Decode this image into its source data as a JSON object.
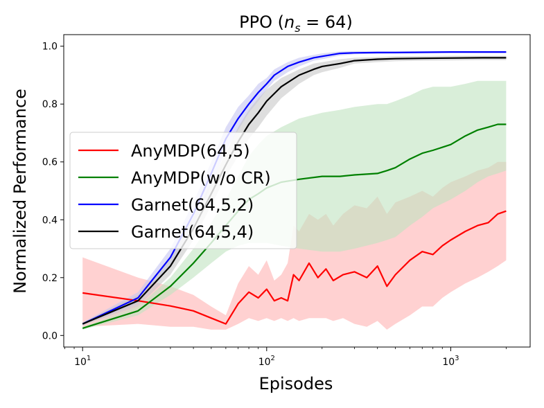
{
  "chart_data": {
    "type": "line",
    "title": "PPO (n_s = 64)",
    "title_prefix": "PPO (",
    "title_var": "n",
    "title_sub": "s",
    "title_suffix": " = 64)",
    "xlabel": "Episodes",
    "ylabel": "Normalized Performance",
    "xscale": "log",
    "xlim": [
      7.9,
      2700
    ],
    "ylim": [
      -0.04,
      1.04
    ],
    "yticks": [
      0.0,
      0.2,
      0.4,
      0.6,
      0.8,
      1.0
    ],
    "ytick_labels": [
      "0.0",
      "0.2",
      "0.4",
      "0.6",
      "0.8",
      "1.0"
    ],
    "xticks": [
      10,
      100,
      1000
    ],
    "xtick_labels": [
      {
        "base": "10",
        "exp": "1"
      },
      {
        "base": "10",
        "exp": "2"
      },
      {
        "base": "10",
        "exp": "3"
      }
    ],
    "legend_position": "center-left",
    "series": [
      {
        "name": "AnyMDP(64,5)",
        "color": "#ff0000",
        "band_color": "#ffb3b3",
        "x": [
          10,
          20,
          30,
          40,
          50,
          60,
          70,
          80,
          90,
          100,
          110,
          120,
          130,
          140,
          150,
          170,
          190,
          210,
          230,
          260,
          300,
          350,
          400,
          450,
          500,
          600,
          700,
          800,
          900,
          1000,
          1200,
          1400,
          1600,
          1800,
          2000
        ],
        "values": [
          0.147,
          0.12,
          0.102,
          0.085,
          0.06,
          0.04,
          0.11,
          0.15,
          0.13,
          0.16,
          0.12,
          0.13,
          0.12,
          0.21,
          0.19,
          0.25,
          0.2,
          0.23,
          0.19,
          0.21,
          0.22,
          0.2,
          0.24,
          0.17,
          0.21,
          0.26,
          0.29,
          0.28,
          0.31,
          0.33,
          0.36,
          0.38,
          0.39,
          0.42,
          0.43
        ],
        "lower": [
          0.03,
          0.04,
          0.03,
          0.03,
          0.02,
          0.02,
          0.04,
          0.06,
          0.05,
          0.06,
          0.05,
          0.06,
          0.05,
          0.06,
          0.05,
          0.06,
          0.06,
          0.06,
          0.05,
          0.06,
          0.04,
          0.03,
          0.05,
          0.02,
          0.04,
          0.07,
          0.1,
          0.1,
          0.13,
          0.15,
          0.18,
          0.2,
          0.22,
          0.24,
          0.26
        ],
        "upper": [
          0.27,
          0.2,
          0.17,
          0.14,
          0.1,
          0.07,
          0.18,
          0.24,
          0.21,
          0.26,
          0.19,
          0.21,
          0.25,
          0.38,
          0.36,
          0.42,
          0.4,
          0.42,
          0.38,
          0.42,
          0.45,
          0.44,
          0.48,
          0.42,
          0.46,
          0.48,
          0.5,
          0.48,
          0.51,
          0.53,
          0.55,
          0.57,
          0.58,
          0.6,
          0.6
        ]
      },
      {
        "name": "AnyMDP(w/o CR)",
        "color": "#008000",
        "band_color": "#bfe3bf",
        "x": [
          10,
          20,
          30,
          40,
          50,
          60,
          70,
          80,
          90,
          100,
          120,
          150,
          200,
          250,
          300,
          400,
          450,
          500,
          600,
          700,
          800,
          1000,
          1200,
          1400,
          1600,
          1800,
          2000
        ],
        "values": [
          0.025,
          0.085,
          0.17,
          0.25,
          0.32,
          0.38,
          0.43,
          0.47,
          0.49,
          0.51,
          0.53,
          0.54,
          0.55,
          0.55,
          0.555,
          0.56,
          0.57,
          0.58,
          0.61,
          0.63,
          0.64,
          0.66,
          0.69,
          0.71,
          0.72,
          0.73,
          0.73
        ],
        "lower": [
          0.02,
          0.07,
          0.14,
          0.2,
          0.25,
          0.29,
          0.31,
          0.32,
          0.32,
          0.32,
          0.31,
          0.3,
          0.29,
          0.29,
          0.3,
          0.32,
          0.33,
          0.34,
          0.38,
          0.41,
          0.44,
          0.47,
          0.5,
          0.53,
          0.55,
          0.56,
          0.57
        ],
        "upper": [
          0.03,
          0.1,
          0.2,
          0.3,
          0.39,
          0.47,
          0.55,
          0.62,
          0.66,
          0.69,
          0.72,
          0.75,
          0.77,
          0.78,
          0.79,
          0.8,
          0.8,
          0.81,
          0.83,
          0.85,
          0.86,
          0.86,
          0.87,
          0.88,
          0.88,
          0.88,
          0.88
        ]
      },
      {
        "name": "Garnet(64,5,2)",
        "color": "#0000ff",
        "band_color": "#c4c4f2",
        "x": [
          10,
          20,
          30,
          40,
          50,
          60,
          70,
          80,
          90,
          100,
          110,
          130,
          150,
          180,
          200,
          250,
          300,
          400,
          500,
          700,
          1000,
          1500,
          2000
        ],
        "values": [
          0.04,
          0.13,
          0.27,
          0.42,
          0.56,
          0.68,
          0.75,
          0.8,
          0.84,
          0.87,
          0.9,
          0.93,
          0.945,
          0.96,
          0.965,
          0.975,
          0.977,
          0.978,
          0.978,
          0.979,
          0.98,
          0.98,
          0.98
        ],
        "lower": [
          0.035,
          0.11,
          0.24,
          0.38,
          0.52,
          0.64,
          0.71,
          0.77,
          0.81,
          0.85,
          0.88,
          0.91,
          0.93,
          0.95,
          0.955,
          0.968,
          0.972,
          0.974,
          0.975,
          0.976,
          0.977,
          0.977,
          0.977
        ],
        "upper": [
          0.045,
          0.15,
          0.3,
          0.46,
          0.6,
          0.72,
          0.79,
          0.83,
          0.87,
          0.89,
          0.92,
          0.945,
          0.96,
          0.97,
          0.975,
          0.982,
          0.983,
          0.983,
          0.983,
          0.983,
          0.984,
          0.984,
          0.984
        ]
      },
      {
        "name": "Garnet(64,5,4)",
        "color": "#000000",
        "band_color": "#c8c8c8",
        "x": [
          10,
          20,
          30,
          40,
          50,
          60,
          70,
          80,
          90,
          100,
          120,
          150,
          180,
          200,
          250,
          300,
          400,
          500,
          700,
          1000,
          1500,
          2000
        ],
        "values": [
          0.04,
          0.12,
          0.24,
          0.37,
          0.49,
          0.59,
          0.67,
          0.73,
          0.77,
          0.81,
          0.86,
          0.9,
          0.92,
          0.93,
          0.94,
          0.95,
          0.955,
          0.957,
          0.958,
          0.959,
          0.96,
          0.96
        ],
        "lower": [
          0.035,
          0.1,
          0.21,
          0.33,
          0.45,
          0.55,
          0.62,
          0.68,
          0.72,
          0.76,
          0.82,
          0.87,
          0.9,
          0.91,
          0.925,
          0.94,
          0.945,
          0.948,
          0.95,
          0.951,
          0.952,
          0.952
        ],
        "upper": [
          0.045,
          0.14,
          0.27,
          0.41,
          0.53,
          0.63,
          0.72,
          0.78,
          0.82,
          0.85,
          0.89,
          0.92,
          0.94,
          0.945,
          0.955,
          0.96,
          0.963,
          0.965,
          0.966,
          0.967,
          0.967,
          0.967
        ]
      }
    ]
  }
}
